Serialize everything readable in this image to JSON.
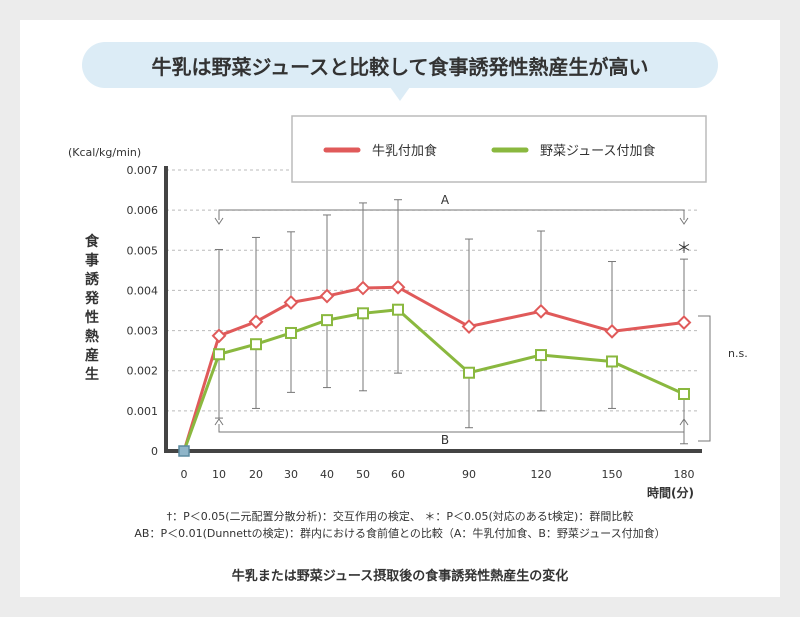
{
  "headline": "牛乳は野菜ジュースと比較して食事誘発性熱産生が高い",
  "caption": "牛乳または野菜ジュース摂取後の食事誘発性熱産生の変化",
  "footnote1": "†：P＜0.05(二元配置分散分析)：交互作用の検定、 ＊：P＜0.05(対応のあるt検定)：群間比較",
  "footnote2": "AB：P＜0.01(Dunnettの検定)：群内における食前値との比較（A：牛乳付加食、B：野菜ジュース付加食）",
  "chart_data": {
    "type": "line",
    "ylabel": "食事誘発性熱産生",
    "yunit": "(Kcal/kg/min)",
    "xlabel": "時間(分)",
    "x": [
      0,
      10,
      20,
      30,
      40,
      50,
      60,
      90,
      120,
      150,
      180
    ],
    "xticks": [
      "0",
      "10",
      "20",
      "30",
      "40",
      "50",
      "60",
      "90",
      "120",
      "150",
      "180"
    ],
    "yticks": [
      "0",
      "0.001",
      "0.002",
      "0.003",
      "0.004",
      "0.005",
      "0.006",
      "0.007"
    ],
    "ylim": [
      0,
      0.007
    ],
    "series": [
      {
        "name": "牛乳付加食",
        "color": "#e05a5a",
        "values": [
          0,
          0.00287,
          0.00322,
          0.0037,
          0.00386,
          0.00406,
          0.00408,
          0.0031,
          0.00348,
          0.00298,
          0.0032
        ],
        "err_high": [
          null,
          0.00502,
          0.00532,
          0.00546,
          0.00588,
          0.00618,
          0.00626,
          0.00528,
          0.00548,
          0.00472,
          0.00478
        ]
      },
      {
        "name": "野菜ジュース付加食",
        "color": "#8ab83f",
        "values": [
          0,
          0.00241,
          0.00266,
          0.00294,
          0.00326,
          0.00343,
          0.00352,
          0.00195,
          0.00239,
          0.00223,
          0.00142
        ],
        "err_low": [
          null,
          0.00082,
          0.00106,
          0.00146,
          0.00158,
          0.0015,
          0.00194,
          0.00058,
          0.001,
          0.00106,
          0.00018
        ]
      }
    ],
    "annotations": {
      "A": "A",
      "B": "B",
      "star": "＊",
      "ns": "n.s."
    }
  }
}
